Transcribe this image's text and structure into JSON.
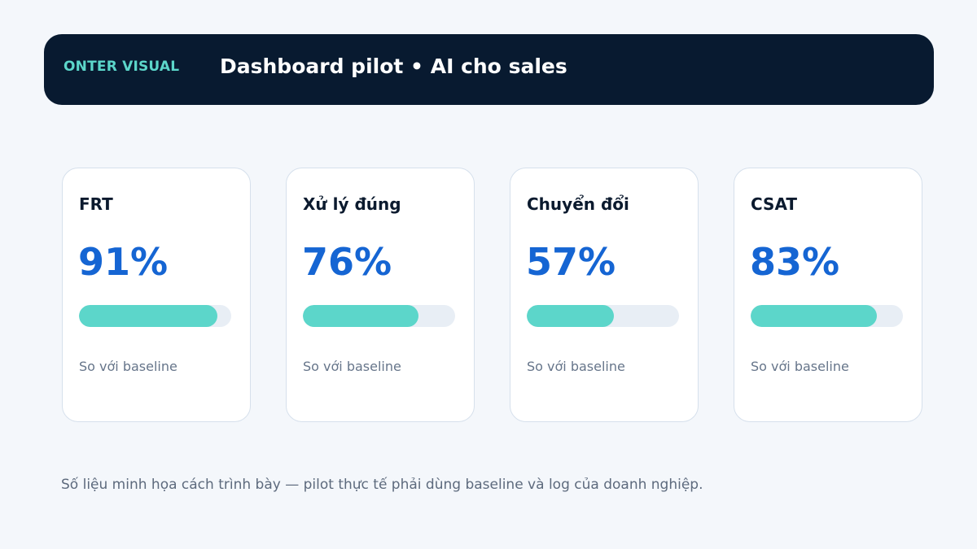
{
  "header": {
    "brand": "ONTER VISUAL",
    "title": "Dashboard pilot • AI cho sales"
  },
  "cards": [
    {
      "label": "FRT",
      "value": "91%",
      "progress": 0.91,
      "note": "So với baseline"
    },
    {
      "label": "Xử lý đúng",
      "value": "76%",
      "progress": 0.76,
      "note": "So với baseline"
    },
    {
      "label": "Chuyển đổi",
      "value": "57%",
      "progress": 0.57,
      "note": "So với baseline"
    },
    {
      "label": "CSAT",
      "value": "83%",
      "progress": 0.83,
      "note": "So với baseline"
    }
  ],
  "footnote": "Số liệu minh họa cách trình bày — pilot thực tế phải dùng baseline và log của doanh nghiệp.",
  "colors": {
    "header_bg": "#081a30",
    "brand": "#5cd6ca",
    "value": "#1565d3",
    "bar_fill": "#5cd6ca",
    "bar_track": "#e8eef5"
  }
}
